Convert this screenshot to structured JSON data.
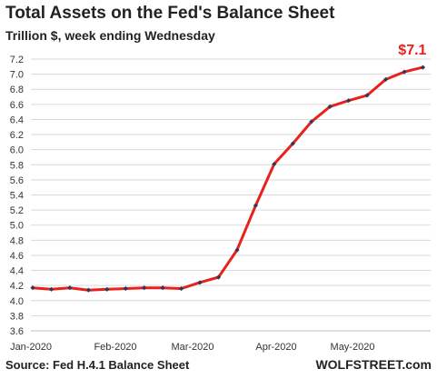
{
  "title": "Total Assets on the Fed's Balance Sheet",
  "subtitle": "Trillion $, week ending Wednesday",
  "source": "Source: Fed H.4.1 Balance Sheet",
  "brand": "WOLFSTREET.com",
  "chart_data": {
    "type": "line",
    "title": "Total Assets on the Fed's Balance Sheet",
    "subtitle": "Trillion $, week ending Wednesday",
    "y_ticks": [
      "3.6",
      "3.8",
      "4.0",
      "4.2",
      "4.4",
      "4.6",
      "4.8",
      "5.0",
      "5.2",
      "5.4",
      "5.6",
      "5.8",
      "6.0",
      "6.2",
      "6.4",
      "6.6",
      "6.8",
      "7.0",
      "7.2"
    ],
    "ylim": [
      3.6,
      7.2
    ],
    "x_ticks": [
      "Jan-2020",
      "Feb-2020",
      "Mar-2020",
      "Apr-2020",
      "May-2020"
    ],
    "end_label": "$7.1",
    "grid": "horizontal",
    "series": [
      {
        "color": "#e8211c",
        "marker_color": "#2f3a57",
        "values": [
          4.17,
          4.15,
          4.17,
          4.14,
          4.15,
          4.16,
          4.17,
          4.17,
          4.16,
          4.24,
          4.31,
          4.67,
          5.26,
          5.81,
          6.08,
          6.37,
          6.57,
          6.65,
          6.72,
          6.93,
          7.03,
          7.09
        ]
      }
    ]
  }
}
